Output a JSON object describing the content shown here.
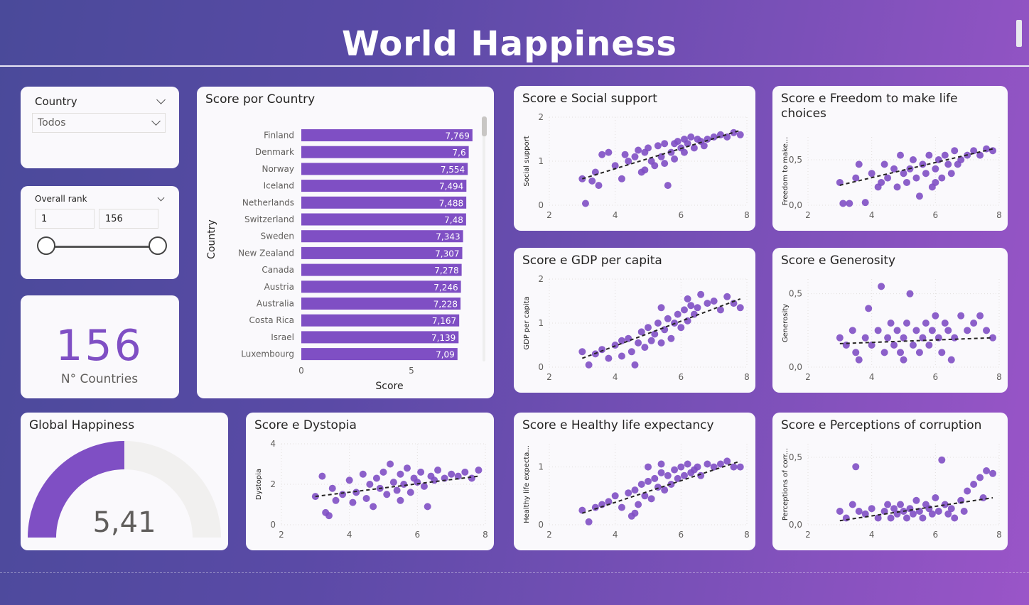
{
  "header": {
    "title": "World Happiness"
  },
  "colors": {
    "accent": "#7f4fc4",
    "bar": "#7f4fc4",
    "gauge_track": "#f1f0ef",
    "trend": "#252423"
  },
  "country_slicer": {
    "label": "Country",
    "selected": "Todos"
  },
  "rank_slicer": {
    "label": "Overall rank",
    "min": "1",
    "max": "156"
  },
  "kpi": {
    "value": "156",
    "label": "N° Countries"
  },
  "gauge": {
    "title": "Global Happiness",
    "value": "5,41",
    "fraction": 0.5
  },
  "icons": [
    "chevron-down-icon"
  ],
  "chart_data": [
    {
      "id": "bar",
      "type": "bar",
      "title": "Score por Country",
      "xlabel": "Score",
      "ylabel": "Country",
      "xticks": [
        "0",
        "5"
      ],
      "xlim": [
        0,
        8.5
      ],
      "categories": [
        "Finland",
        "Denmark",
        "Norway",
        "Iceland",
        "Netherlands",
        "Switzerland",
        "Sweden",
        "New Zealand",
        "Canada",
        "Austria",
        "Australia",
        "Costa Rica",
        "Israel",
        "Luxembourg"
      ],
      "values": [
        7.769,
        7.6,
        7.554,
        7.494,
        7.488,
        7.48,
        7.343,
        7.307,
        7.278,
        7.246,
        7.228,
        7.167,
        7.139,
        7.09
      ],
      "labels": [
        "7,769",
        "7,6",
        "7,554",
        "7,494",
        "7,488",
        "7,48",
        "7,343",
        "7,307",
        "7,278",
        "7,246",
        "7,228",
        "7,167",
        "7,139",
        "7,09"
      ]
    },
    {
      "id": "social",
      "type": "scatter",
      "title": "Score e Social support",
      "ylabel": "Social support",
      "xlim": [
        2,
        8
      ],
      "ylim": [
        0,
        2
      ],
      "xticks": [
        "2",
        "4",
        "6",
        "8"
      ],
      "yticks": [
        "0",
        "1",
        "2"
      ],
      "trend": [
        [
          3,
          0.6
        ],
        [
          7.8,
          1.7
        ]
      ],
      "points": [
        [
          3.0,
          0.6
        ],
        [
          3.1,
          0.04
        ],
        [
          3.3,
          0.55
        ],
        [
          3.4,
          0.75
        ],
        [
          3.5,
          0.45
        ],
        [
          3.6,
          1.15
        ],
        [
          3.8,
          1.2
        ],
        [
          4.0,
          0.9
        ],
        [
          4.2,
          0.6
        ],
        [
          4.4,
          1.0
        ],
        [
          4.6,
          1.1
        ],
        [
          4.7,
          1.25
        ],
        [
          4.8,
          0.75
        ],
        [
          4.9,
          1.2
        ],
        [
          5.0,
          1.3
        ],
        [
          5.1,
          1.0
        ],
        [
          5.2,
          0.9
        ],
        [
          5.3,
          1.35
        ],
        [
          5.4,
          1.1
        ],
        [
          5.5,
          0.95
        ],
        [
          5.6,
          0.45
        ],
        [
          5.7,
          1.2
        ],
        [
          5.8,
          1.4
        ],
        [
          5.9,
          1.45
        ],
        [
          6.0,
          1.3
        ],
        [
          6.1,
          1.5
        ],
        [
          6.2,
          1.4
        ],
        [
          6.3,
          1.55
        ],
        [
          6.4,
          1.3
        ],
        [
          6.5,
          1.5
        ],
        [
          6.6,
          1.45
        ],
        [
          6.8,
          1.5
        ],
        [
          7.0,
          1.55
        ],
        [
          7.2,
          1.6
        ],
        [
          7.4,
          1.55
        ],
        [
          7.6,
          1.65
        ],
        [
          7.8,
          1.6
        ],
        [
          4.3,
          1.15
        ],
        [
          5.5,
          1.4
        ],
        [
          6.1,
          1.2
        ],
        [
          4.9,
          0.8
        ],
        [
          5.8,
          1.05
        ],
        [
          6.7,
          1.35
        ]
      ]
    },
    {
      "id": "freedom",
      "type": "scatter",
      "title": "Score e Freedom to make life choices",
      "ylabel": "Freedom to make...",
      "xlim": [
        2,
        8
      ],
      "ylim": [
        0,
        0.75
      ],
      "xticks": [
        "2",
        "4",
        "6",
        "8"
      ],
      "yticks": [
        "0,0",
        "0,5"
      ],
      "trend": [
        [
          3,
          0.22
        ],
        [
          7.8,
          0.62
        ]
      ],
      "points": [
        [
          3.0,
          0.25
        ],
        [
          3.1,
          0.02
        ],
        [
          3.3,
          0.02
        ],
        [
          3.5,
          0.3
        ],
        [
          3.6,
          0.45
        ],
        [
          3.8,
          0.03
        ],
        [
          4.0,
          0.35
        ],
        [
          4.2,
          0.2
        ],
        [
          4.4,
          0.45
        ],
        [
          4.5,
          0.3
        ],
        [
          4.7,
          0.4
        ],
        [
          4.8,
          0.2
        ],
        [
          4.9,
          0.55
        ],
        [
          5.0,
          0.35
        ],
        [
          5.1,
          0.25
        ],
        [
          5.3,
          0.5
        ],
        [
          5.4,
          0.3
        ],
        [
          5.5,
          0.1
        ],
        [
          5.6,
          0.45
        ],
        [
          5.7,
          0.35
        ],
        [
          5.8,
          0.55
        ],
        [
          5.9,
          0.2
        ],
        [
          6.0,
          0.4
        ],
        [
          6.1,
          0.5
        ],
        [
          6.2,
          0.3
        ],
        [
          6.3,
          0.55
        ],
        [
          6.4,
          0.45
        ],
        [
          6.5,
          0.35
        ],
        [
          6.6,
          0.6
        ],
        [
          6.7,
          0.45
        ],
        [
          6.8,
          0.5
        ],
        [
          7.0,
          0.55
        ],
        [
          7.2,
          0.6
        ],
        [
          7.4,
          0.55
        ],
        [
          7.6,
          0.62
        ],
        [
          7.8,
          0.6
        ],
        [
          4.3,
          0.25
        ],
        [
          5.2,
          0.4
        ],
        [
          6.0,
          0.25
        ]
      ]
    },
    {
      "id": "gdp",
      "type": "scatter",
      "title": "Score e GDP per capita",
      "ylabel": "GDP per capita",
      "xlim": [
        2,
        8
      ],
      "ylim": [
        0,
        2
      ],
      "xticks": [
        "2",
        "4",
        "6",
        "8"
      ],
      "yticks": [
        "0",
        "1",
        "2"
      ],
      "trend": [
        [
          3,
          0.2
        ],
        [
          7.8,
          1.55
        ]
      ],
      "points": [
        [
          3.0,
          0.35
        ],
        [
          3.2,
          0.05
        ],
        [
          3.4,
          0.3
        ],
        [
          3.6,
          0.4
        ],
        [
          3.8,
          0.2
        ],
        [
          4.0,
          0.5
        ],
        [
          4.2,
          0.25
        ],
        [
          4.4,
          0.65
        ],
        [
          4.5,
          0.35
        ],
        [
          4.6,
          0.05
        ],
        [
          4.7,
          0.55
        ],
        [
          4.8,
          0.8
        ],
        [
          4.9,
          0.45
        ],
        [
          5.0,
          0.9
        ],
        [
          5.1,
          0.6
        ],
        [
          5.2,
          0.75
        ],
        [
          5.3,
          1.0
        ],
        [
          5.4,
          0.55
        ],
        [
          5.5,
          0.85
        ],
        [
          5.6,
          1.1
        ],
        [
          5.7,
          0.65
        ],
        [
          5.8,
          1.0
        ],
        [
          5.9,
          1.2
        ],
        [
          6.0,
          0.9
        ],
        [
          6.1,
          1.3
        ],
        [
          6.2,
          1.05
        ],
        [
          6.3,
          1.4
        ],
        [
          6.4,
          1.2
        ],
        [
          6.5,
          1.35
        ],
        [
          6.6,
          1.65
        ],
        [
          6.8,
          1.45
        ],
        [
          7.0,
          1.5
        ],
        [
          7.2,
          1.3
        ],
        [
          7.4,
          1.6
        ],
        [
          7.6,
          1.45
        ],
        [
          7.8,
          1.35
        ],
        [
          5.4,
          1.35
        ],
        [
          6.2,
          1.55
        ],
        [
          4.2,
          0.6
        ]
      ]
    },
    {
      "id": "generosity",
      "type": "scatter",
      "title": "Score e Generosity",
      "ylabel": "Generosity",
      "xlim": [
        2,
        8
      ],
      "ylim": [
        0,
        0.6
      ],
      "xticks": [
        "2",
        "4",
        "6",
        "8"
      ],
      "yticks": [
        "0,0",
        "0,5"
      ],
      "trend": [
        [
          3,
          0.16
        ],
        [
          7.8,
          0.2
        ]
      ],
      "points": [
        [
          3.0,
          0.2
        ],
        [
          3.2,
          0.15
        ],
        [
          3.4,
          0.25
        ],
        [
          3.5,
          0.1
        ],
        [
          3.6,
          0.05
        ],
        [
          3.8,
          0.2
        ],
        [
          3.9,
          0.4
        ],
        [
          4.0,
          0.15
        ],
        [
          4.2,
          0.25
        ],
        [
          4.3,
          0.55
        ],
        [
          4.4,
          0.1
        ],
        [
          4.5,
          0.2
        ],
        [
          4.6,
          0.3
        ],
        [
          4.7,
          0.15
        ],
        [
          4.8,
          0.25
        ],
        [
          4.9,
          0.1
        ],
        [
          5.0,
          0.2
        ],
        [
          5.1,
          0.3
        ],
        [
          5.2,
          0.5
        ],
        [
          5.3,
          0.15
        ],
        [
          5.4,
          0.25
        ],
        [
          5.5,
          0.1
        ],
        [
          5.6,
          0.2
        ],
        [
          5.7,
          0.3
        ],
        [
          5.8,
          0.15
        ],
        [
          5.9,
          0.25
        ],
        [
          6.0,
          0.35
        ],
        [
          6.1,
          0.2
        ],
        [
          6.2,
          0.1
        ],
        [
          6.3,
          0.3
        ],
        [
          6.4,
          0.25
        ],
        [
          6.6,
          0.2
        ],
        [
          6.8,
          0.35
        ],
        [
          7.0,
          0.25
        ],
        [
          7.2,
          0.3
        ],
        [
          7.4,
          0.35
        ],
        [
          7.6,
          0.25
        ],
        [
          7.8,
          0.2
        ],
        [
          5.0,
          0.05
        ],
        [
          6.5,
          0.05
        ]
      ]
    },
    {
      "id": "dystopia",
      "type": "scatter",
      "title": "Score e Dystopia",
      "ylabel": "Dystopia",
      "xlim": [
        2,
        8
      ],
      "ylim": [
        0,
        4
      ],
      "xticks": [
        "2",
        "4",
        "6",
        "8"
      ],
      "yticks": [
        "0",
        "2",
        "4"
      ],
      "trend": [
        [
          3,
          1.4
        ],
        [
          7.8,
          2.4
        ]
      ],
      "points": [
        [
          3.0,
          1.4
        ],
        [
          3.2,
          2.4
        ],
        [
          3.3,
          0.6
        ],
        [
          3.4,
          0.45
        ],
        [
          3.5,
          1.8
        ],
        [
          3.6,
          1.2
        ],
        [
          3.8,
          1.5
        ],
        [
          4.0,
          2.2
        ],
        [
          4.2,
          1.6
        ],
        [
          4.4,
          2.5
        ],
        [
          4.5,
          1.3
        ],
        [
          4.6,
          2.0
        ],
        [
          4.7,
          0.9
        ],
        [
          4.8,
          2.3
        ],
        [
          4.9,
          1.8
        ],
        [
          5.0,
          2.6
        ],
        [
          5.1,
          1.5
        ],
        [
          5.2,
          3.0
        ],
        [
          5.3,
          2.1
        ],
        [
          5.4,
          1.7
        ],
        [
          5.5,
          2.5
        ],
        [
          5.6,
          2.0
        ],
        [
          5.7,
          2.8
        ],
        [
          5.8,
          1.6
        ],
        [
          5.9,
          2.3
        ],
        [
          6.0,
          2.1
        ],
        [
          6.1,
          2.6
        ],
        [
          6.2,
          1.9
        ],
        [
          6.3,
          0.9
        ],
        [
          6.4,
          2.4
        ],
        [
          6.5,
          2.2
        ],
        [
          6.6,
          2.7
        ],
        [
          6.8,
          2.3
        ],
        [
          7.0,
          2.5
        ],
        [
          7.2,
          2.4
        ],
        [
          7.4,
          2.6
        ],
        [
          7.6,
          2.3
        ],
        [
          7.8,
          2.7
        ],
        [
          4.1,
          1.1
        ],
        [
          5.5,
          1.2
        ]
      ]
    },
    {
      "id": "health",
      "type": "scatter",
      "title": "Score e Healthy life expectancy",
      "ylabel": "Healthy life expecta...",
      "xlim": [
        2,
        8
      ],
      "ylim": [
        0,
        1.4
      ],
      "xticks": [
        "2",
        "4",
        "6",
        "8"
      ],
      "yticks": [
        "0",
        "1"
      ],
      "trend": [
        [
          3,
          0.2
        ],
        [
          7.8,
          1.1
        ]
      ],
      "points": [
        [
          3.0,
          0.25
        ],
        [
          3.2,
          0.05
        ],
        [
          3.4,
          0.3
        ],
        [
          3.6,
          0.35
        ],
        [
          3.8,
          0.4
        ],
        [
          4.0,
          0.5
        ],
        [
          4.2,
          0.3
        ],
        [
          4.4,
          0.55
        ],
        [
          4.5,
          0.15
        ],
        [
          4.6,
          0.6
        ],
        [
          4.7,
          0.35
        ],
        [
          4.8,
          0.7
        ],
        [
          4.9,
          0.5
        ],
        [
          5.0,
          0.75
        ],
        [
          5.1,
          0.45
        ],
        [
          5.2,
          0.8
        ],
        [
          5.3,
          0.65
        ],
        [
          5.4,
          0.9
        ],
        [
          5.5,
          0.6
        ],
        [
          5.6,
          0.85
        ],
        [
          5.7,
          0.7
        ],
        [
          5.8,
          0.95
        ],
        [
          5.9,
          0.8
        ],
        [
          6.0,
          1.0
        ],
        [
          6.1,
          0.85
        ],
        [
          6.2,
          1.05
        ],
        [
          6.3,
          0.9
        ],
        [
          6.4,
          0.95
        ],
        [
          6.5,
          1.0
        ],
        [
          6.6,
          0.85
        ],
        [
          6.8,
          1.05
        ],
        [
          7.0,
          1.0
        ],
        [
          7.2,
          1.05
        ],
        [
          7.4,
          1.1
        ],
        [
          7.6,
          1.0
        ],
        [
          7.8,
          1.0
        ],
        [
          5.0,
          1.0
        ],
        [
          5.4,
          1.05
        ],
        [
          4.6,
          0.2
        ]
      ]
    },
    {
      "id": "corruption",
      "type": "scatter",
      "title": "Score e Perceptions of corruption",
      "ylabel": "Perceptions of corr...",
      "xlim": [
        2,
        8
      ],
      "ylim": [
        0,
        0.6
      ],
      "xticks": [
        "2",
        "4",
        "6",
        "8"
      ],
      "yticks": [
        "0,0",
        "0,5"
      ],
      "trend": [
        [
          3,
          0.03
        ],
        [
          7.8,
          0.2
        ]
      ],
      "points": [
        [
          3.0,
          0.1
        ],
        [
          3.2,
          0.05
        ],
        [
          3.4,
          0.15
        ],
        [
          3.5,
          0.43
        ],
        [
          3.6,
          0.1
        ],
        [
          3.8,
          0.08
        ],
        [
          4.0,
          0.12
        ],
        [
          4.2,
          0.05
        ],
        [
          4.4,
          0.1
        ],
        [
          4.5,
          0.15
        ],
        [
          4.6,
          0.05
        ],
        [
          4.7,
          0.12
        ],
        [
          4.8,
          0.08
        ],
        [
          4.9,
          0.15
        ],
        [
          5.0,
          0.1
        ],
        [
          5.1,
          0.05
        ],
        [
          5.2,
          0.12
        ],
        [
          5.3,
          0.08
        ],
        [
          5.4,
          0.18
        ],
        [
          5.5,
          0.1
        ],
        [
          5.6,
          0.05
        ],
        [
          5.7,
          0.15
        ],
        [
          5.8,
          0.12
        ],
        [
          5.9,
          0.08
        ],
        [
          6.0,
          0.2
        ],
        [
          6.1,
          0.1
        ],
        [
          6.2,
          0.48
        ],
        [
          6.3,
          0.15
        ],
        [
          6.4,
          0.08
        ],
        [
          6.5,
          0.12
        ],
        [
          6.6,
          0.05
        ],
        [
          6.8,
          0.18
        ],
        [
          7.0,
          0.25
        ],
        [
          7.2,
          0.3
        ],
        [
          7.4,
          0.35
        ],
        [
          7.6,
          0.4
        ],
        [
          7.8,
          0.38
        ],
        [
          7.5,
          0.2
        ],
        [
          6.9,
          0.1
        ]
      ]
    }
  ]
}
